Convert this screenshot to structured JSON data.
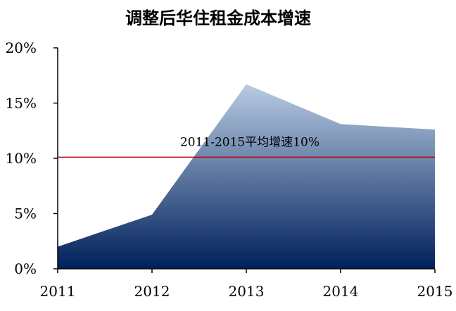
{
  "chart_data": {
    "type": "area",
    "title": "调整后华住租金成本增速",
    "x": [
      "2011",
      "2012",
      "2013",
      "2014",
      "2015"
    ],
    "series": [
      {
        "values": [
          2.0,
          4.9,
          16.7,
          13.1,
          12.6
        ]
      }
    ],
    "ylim": [
      0,
      20
    ],
    "yticks": [
      "0%",
      "5%",
      "10%",
      "15%",
      "20%"
    ],
    "ytick_values": [
      0,
      5,
      10,
      15,
      20
    ],
    "reference_line": {
      "value": 10.1,
      "label": "2011-2015平均增速10%",
      "color": "#c00000"
    },
    "area_gradient": {
      "top": "#b8cce4",
      "bottom": "#00205b"
    },
    "grid": false,
    "legend": "none"
  }
}
